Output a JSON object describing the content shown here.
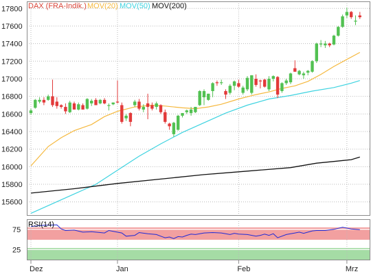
{
  "legend": {
    "title": "DAX (FRA-Indik.)",
    "ma20": "MOV(20)",
    "ma50": "MOV(50)",
    "ma200": "MOV(200)"
  },
  "colors": {
    "up": "#52c152",
    "down": "#e23a3a",
    "ma20": "#f5b83d",
    "ma50": "#3dd3e0",
    "ma200": "#111111",
    "title": "#d9453a",
    "grid": "#b9b9b9",
    "rsi_line": "#1f2ad6",
    "rsi_overbought": "#f2a0a0",
    "rsi_oversold": "#a5dca5"
  },
  "chart_data": [
    {
      "type": "candlestick",
      "title": "DAX (FRA-Indik.)",
      "y_ticks": [
        "15600",
        "15800",
        "16000",
        "16200",
        "16400",
        "16600",
        "16800",
        "17000",
        "17200",
        "17400",
        "17600",
        "17800"
      ],
      "ylim": [
        15450,
        17880
      ],
      "grid": true,
      "x_ticks": [
        {
          "label": "Dez",
          "i": 0
        },
        {
          "label": "Jan",
          "i": 20
        },
        {
          "label": "Feb",
          "i": 48
        },
        {
          "label": "Mrz",
          "i": 73
        }
      ],
      "ohlc": [
        [
          16610,
          16660,
          16590,
          16640
        ],
        [
          16670,
          16770,
          16660,
          16760
        ],
        [
          16740,
          16790,
          16720,
          16760
        ],
        [
          16760,
          16790,
          16700,
          16730
        ],
        [
          16760,
          16820,
          16750,
          16800
        ],
        [
          16800,
          16990,
          16680,
          16700
        ],
        [
          16740,
          16790,
          16660,
          16690
        ],
        [
          16700,
          16710,
          16660,
          16680
        ],
        [
          16680,
          16720,
          16600,
          16630
        ],
        [
          16620,
          16750,
          16610,
          16730
        ],
        [
          16720,
          16740,
          16650,
          16650
        ],
        [
          16650,
          16730,
          16640,
          16710
        ],
        [
          16700,
          16720,
          16650,
          16650
        ],
        [
          16660,
          16780,
          16650,
          16770
        ],
        [
          16720,
          16770,
          16690,
          16750
        ],
        [
          16760,
          16780,
          16700,
          16700
        ],
        [
          16720,
          16770,
          16710,
          16760
        ],
        [
          16760,
          16780,
          16710,
          16720
        ],
        [
          16700,
          16720,
          16640,
          16700
        ],
        [
          16710,
          16730,
          16700,
          16730
        ],
        [
          16740,
          16980,
          16720,
          16730
        ],
        [
          16700,
          16730,
          16490,
          16510
        ],
        [
          16550,
          16600,
          16520,
          16580
        ],
        [
          16610,
          16620,
          16460,
          16510
        ],
        [
          16700,
          16760,
          16680,
          16740
        ],
        [
          16740,
          16770,
          16640,
          16660
        ],
        [
          16650,
          16710,
          16620,
          16680
        ],
        [
          16720,
          16830,
          16540,
          16680
        ],
        [
          16700,
          16730,
          16640,
          16660
        ],
        [
          16680,
          16740,
          16650,
          16720
        ],
        [
          16700,
          16710,
          16600,
          16620
        ],
        [
          16620,
          16650,
          16490,
          16510
        ],
        [
          16490,
          16500,
          16420,
          16460
        ],
        [
          16370,
          16510,
          16340,
          16500
        ],
        [
          16420,
          16590,
          16410,
          16580
        ],
        [
          16580,
          16610,
          16560,
          16610
        ],
        [
          16620,
          16650,
          16600,
          16640
        ],
        [
          16610,
          16680,
          16580,
          16650
        ],
        [
          16620,
          16680,
          16610,
          16680
        ],
        [
          16700,
          16870,
          16690,
          16860
        ],
        [
          16790,
          16880,
          16700,
          16860
        ],
        [
          16760,
          16830,
          16750,
          16830
        ],
        [
          16860,
          16960,
          16790,
          16950
        ],
        [
          16960,
          16980,
          16920,
          16950
        ],
        [
          16960,
          16990,
          16930,
          16960
        ],
        [
          16860,
          16880,
          16770,
          16820
        ],
        [
          16840,
          16940,
          16820,
          16920
        ],
        [
          16920,
          16980,
          16870,
          16970
        ],
        [
          16950,
          16990,
          16900,
          16910
        ],
        [
          16840,
          16920,
          16820,
          16900
        ],
        [
          16880,
          17030,
          16860,
          17010
        ],
        [
          16840,
          17040,
          16820,
          17040
        ],
        [
          17000,
          17050,
          16910,
          16930
        ],
        [
          16980,
          16990,
          16890,
          16970
        ],
        [
          16990,
          17000,
          16900,
          16910
        ],
        [
          16880,
          17030,
          16860,
          17000
        ],
        [
          17000,
          17040,
          16970,
          17030
        ],
        [
          17020,
          17030,
          16780,
          16820
        ],
        [
          16860,
          16960,
          16840,
          16950
        ],
        [
          16950,
          17000,
          16930,
          16980
        ],
        [
          16960,
          17070,
          16940,
          17060
        ],
        [
          17120,
          17210,
          17080,
          17080
        ],
        [
          17050,
          17100,
          17040,
          17090
        ],
        [
          17040,
          17080,
          17000,
          17060
        ],
        [
          17070,
          17100,
          17040,
          17090
        ],
        [
          17080,
          17210,
          17070,
          17200
        ],
        [
          17200,
          17410,
          17180,
          17400
        ],
        [
          17390,
          17440,
          17360,
          17400
        ],
        [
          17380,
          17430,
          17350,
          17400
        ],
        [
          17400,
          17410,
          17360,
          17380
        ],
        [
          17390,
          17500,
          17380,
          17490
        ],
        [
          17490,
          17600,
          17480,
          17590
        ],
        [
          17590,
          17730,
          17580,
          17710
        ],
        [
          17720,
          17810,
          17690,
          17760
        ],
        [
          17760,
          17770,
          17680,
          17700
        ],
        [
          17650,
          17720,
          17610,
          17660
        ],
        [
          17720,
          17760,
          17680,
          17700
        ]
      ],
      "series": [
        {
          "name": "MOV(20)",
          "points": [
            [
              0,
              16010
            ],
            [
              2,
              16120
            ],
            [
              4,
              16230
            ],
            [
              7,
              16330
            ],
            [
              10,
              16410
            ],
            [
              14,
              16480
            ],
            [
              17,
              16570
            ],
            [
              20,
              16630
            ],
            [
              24,
              16680
            ],
            [
              28,
              16700
            ],
            [
              31,
              16690
            ],
            [
              35,
              16670
            ],
            [
              38,
              16660
            ],
            [
              41,
              16680
            ],
            [
              44,
              16710
            ],
            [
              48,
              16770
            ],
            [
              52,
              16820
            ],
            [
              55,
              16850
            ],
            [
              58,
              16890
            ],
            [
              61,
              16920
            ],
            [
              64,
              16970
            ],
            [
              67,
              17050
            ],
            [
              70,
              17140
            ],
            [
              73,
              17220
            ],
            [
              76,
              17300
            ]
          ]
        },
        {
          "name": "MOV(50)",
          "points": [
            [
              0,
              15470
            ],
            [
              5,
              15580
            ],
            [
              10,
              15690
            ],
            [
              15,
              15800
            ],
            [
              20,
              15960
            ],
            [
              25,
              16120
            ],
            [
              30,
              16260
            ],
            [
              35,
              16390
            ],
            [
              40,
              16500
            ],
            [
              45,
              16610
            ],
            [
              50,
              16700
            ],
            [
              55,
              16770
            ],
            [
              60,
              16810
            ],
            [
              65,
              16860
            ],
            [
              70,
              16900
            ],
            [
              74,
              16950
            ],
            [
              76,
              16980
            ]
          ]
        },
        {
          "name": "MOV(200)",
          "points": [
            [
              0,
              15700
            ],
            [
              10,
              15750
            ],
            [
              20,
              15810
            ],
            [
              30,
              15860
            ],
            [
              40,
              15910
            ],
            [
              50,
              15950
            ],
            [
              60,
              15990
            ],
            [
              66,
              16040
            ],
            [
              70,
              16060
            ],
            [
              74,
              16080
            ],
            [
              76,
              16110
            ]
          ]
        }
      ]
    },
    {
      "type": "line",
      "title": "RSI(14)",
      "y_ticks": [
        "25",
        "75"
      ],
      "ylim": [
        0,
        100
      ],
      "bands": [
        {
          "from": 70,
          "to": 100,
          "kind": "overbought"
        },
        {
          "from": 0,
          "to": 30,
          "kind": "oversold"
        }
      ],
      "series": [
        {
          "name": "RSI(14)",
          "points": [
            [
              0,
              82
            ],
            [
              3,
              85
            ],
            [
              6,
              86
            ],
            [
              7,
              76
            ],
            [
              8,
              72
            ],
            [
              10,
              73
            ],
            [
              12,
              68
            ],
            [
              14,
              69
            ],
            [
              16,
              67
            ],
            [
              17,
              66
            ],
            [
              18,
              72
            ],
            [
              21,
              66
            ],
            [
              22,
              58
            ],
            [
              24,
              60
            ],
            [
              25,
              67
            ],
            [
              27,
              64
            ],
            [
              29,
              62
            ],
            [
              30,
              58
            ],
            [
              31,
              54
            ],
            [
              32,
              56
            ],
            [
              33,
              52
            ],
            [
              34,
              57
            ],
            [
              35,
              56
            ],
            [
              36,
              60
            ],
            [
              37,
              63
            ],
            [
              38,
              62
            ],
            [
              39,
              64
            ],
            [
              40,
              66
            ],
            [
              42,
              67
            ],
            [
              44,
              66
            ],
            [
              46,
              62
            ],
            [
              47,
              65
            ],
            [
              48,
              63
            ],
            [
              50,
              62
            ],
            [
              52,
              58
            ],
            [
              53,
              60
            ],
            [
              54,
              63
            ],
            [
              55,
              60
            ],
            [
              56,
              64
            ],
            [
              57,
              54
            ],
            [
              59,
              62
            ],
            [
              60,
              64
            ],
            [
              61,
              66
            ],
            [
              62,
              68
            ],
            [
              63,
              65
            ],
            [
              64,
              68
            ],
            [
              65,
              71
            ],
            [
              66,
              72
            ],
            [
              68,
              72
            ],
            [
              70,
              75
            ],
            [
              72,
              80
            ],
            [
              74,
              76
            ],
            [
              76,
              74
            ]
          ]
        }
      ]
    }
  ]
}
